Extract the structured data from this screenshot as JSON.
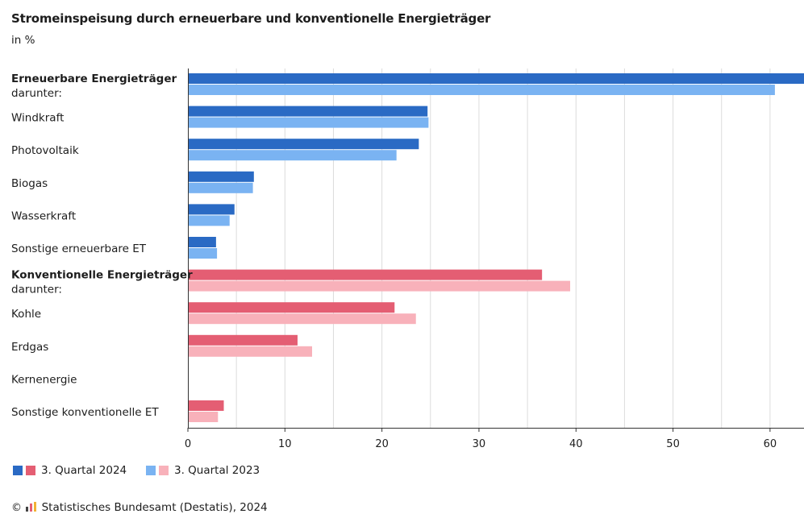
{
  "title": "Stromeinspeisung durch erneuerbare und konventionelle Energieträger",
  "subtitle": "in %",
  "legend": {
    "item1": "3. Quartal 2024",
    "item2": "3. Quartal 2023"
  },
  "source": {
    "copyright": "©",
    "text": "Statistisches Bundesamt (Destatis), 2024"
  },
  "colors": {
    "renewable_2024": "#2a6ac4",
    "renewable_2023": "#7ab3f2",
    "conventional_2024": "#e45e73",
    "conventional_2023": "#f8b1ba",
    "gridline": "#dcdcdc",
    "axis": "#333333"
  },
  "chart_data": {
    "type": "bar",
    "orientation": "horizontal",
    "categories": [
      {
        "label": "Erneuerbare Energieträger",
        "sublabel": "darunter:",
        "bold": true,
        "group": "renewable"
      },
      {
        "label": "Windkraft",
        "group": "renewable"
      },
      {
        "label": "Photovoltaik",
        "group": "renewable"
      },
      {
        "label": "Biogas",
        "group": "renewable"
      },
      {
        "label": "Wasserkraft",
        "group": "renewable"
      },
      {
        "label": "Sonstige erneuerbare ET",
        "group": "renewable"
      },
      {
        "label": "Konventionelle Energieträger",
        "sublabel": "darunter:",
        "bold": true,
        "group": "conventional"
      },
      {
        "label": "Kohle",
        "group": "conventional"
      },
      {
        "label": "Erdgas",
        "group": "conventional"
      },
      {
        "label": "Kernenergie",
        "group": "conventional"
      },
      {
        "label": "Sonstige konventionelle ET",
        "group": "conventional"
      }
    ],
    "series": [
      {
        "name": "3. Quartal 2024",
        "values": [
          63.5,
          24.7,
          23.8,
          6.8,
          4.8,
          2.9,
          36.5,
          21.3,
          11.3,
          0,
          3.7
        ]
      },
      {
        "name": "3. Quartal 2023",
        "values": [
          60.5,
          24.8,
          21.5,
          6.7,
          4.3,
          3.0,
          39.4,
          23.5,
          12.8,
          0,
          3.1
        ]
      }
    ],
    "xlim": [
      0,
      63.5
    ],
    "xticks": [
      0,
      10,
      20,
      30,
      40,
      50,
      60
    ],
    "grid": true
  }
}
